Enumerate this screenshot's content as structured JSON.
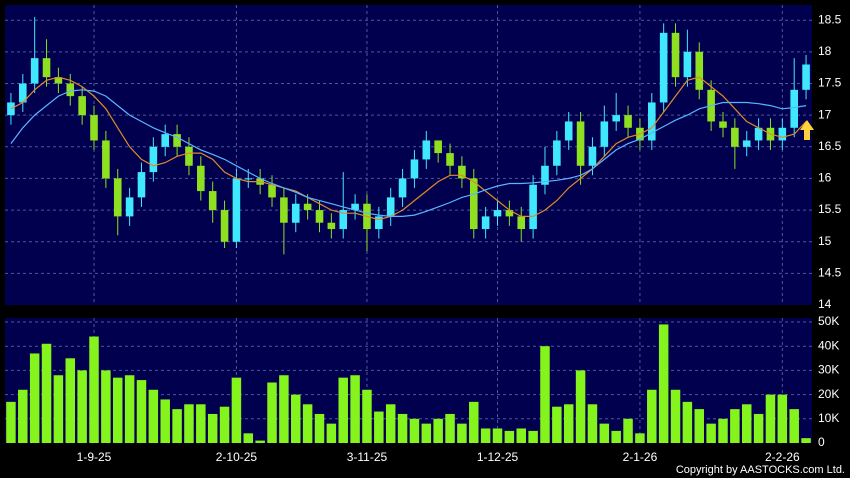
{
  "chart_data": {
    "type": "candlestick",
    "categories": [
      null,
      null,
      null,
      null,
      null,
      null,
      null,
      "1-9-25",
      null,
      null,
      null,
      null,
      null,
      null,
      null,
      null,
      null,
      null,
      null,
      "2-10-25",
      null,
      null,
      null,
      null,
      null,
      null,
      null,
      null,
      null,
      null,
      "3-11-25",
      null,
      null,
      null,
      null,
      null,
      null,
      null,
      null,
      null,
      null,
      "1-12-25",
      null,
      null,
      null,
      null,
      null,
      null,
      null,
      null,
      null,
      null,
      null,
      "2-1-26",
      null,
      null,
      null,
      null,
      null,
      null,
      null,
      null,
      null,
      null,
      null,
      "2-2-26",
      null,
      null
    ],
    "open": [
      17.0,
      17.2,
      17.5,
      17.9,
      17.6,
      17.5,
      17.3,
      17.0,
      16.6,
      16.0,
      15.4,
      15.7,
      16.1,
      16.5,
      16.7,
      16.5,
      16.2,
      15.8,
      15.5,
      15.0,
      16.0,
      16.0,
      15.9,
      15.7,
      15.3,
      15.6,
      15.5,
      15.3,
      15.2,
      15.5,
      15.6,
      15.2,
      15.4,
      15.7,
      16.0,
      16.3,
      16.6,
      16.4,
      16.2,
      16.0,
      15.2,
      15.4,
      15.5,
      15.4,
      15.2,
      15.9,
      16.2,
      16.6,
      16.9,
      16.2,
      16.5,
      16.9,
      17.0,
      16.8,
      16.6,
      17.2,
      18.3,
      17.6,
      18.0,
      17.4,
      16.9,
      16.8,
      16.5,
      16.6,
      16.8,
      16.6,
      16.8,
      17.4
    ],
    "high": [
      17.35,
      17.65,
      18.55,
      18.2,
      17.75,
      17.65,
      17.45,
      17.15,
      16.75,
      16.15,
      15.85,
      16.25,
      16.65,
      16.85,
      16.85,
      16.65,
      16.35,
      15.95,
      15.65,
      16.15,
      16.15,
      16.15,
      16.05,
      15.85,
      15.75,
      15.75,
      15.65,
      15.45,
      16.1,
      15.75,
      15.75,
      15.55,
      15.85,
      16.15,
      16.45,
      16.75,
      16.6,
      16.55,
      16.35,
      16.15,
      15.55,
      15.65,
      15.65,
      15.55,
      16.05,
      16.5,
      16.75,
      17.05,
      17.05,
      16.65,
      17.15,
      17.35,
      17.15,
      16.95,
      17.35,
      18.45,
      18.45,
      18.35,
      18.15,
      17.55,
      17.05,
      16.95,
      16.75,
      16.95,
      16.95,
      16.95,
      17.9,
      17.95
    ],
    "low": [
      16.85,
      17.05,
      17.35,
      17.45,
      17.35,
      17.15,
      16.85,
      16.45,
      15.85,
      15.1,
      15.25,
      15.55,
      15.95,
      16.35,
      16.35,
      16.05,
      15.65,
      15.3,
      14.9,
      14.9,
      15.85,
      15.75,
      15.55,
      14.8,
      15.15,
      15.35,
      15.15,
      15.05,
      15.05,
      15.35,
      14.85,
      15.05,
      15.25,
      15.55,
      15.85,
      16.15,
      16.25,
      16.05,
      15.85,
      15.05,
      15.05,
      15.25,
      15.25,
      15.0,
      15.05,
      15.75,
      16.05,
      16.45,
      15.9,
      16.05,
      16.35,
      16.75,
      16.65,
      16.45,
      16.45,
      17.05,
      17.45,
      17.45,
      17.25,
      16.75,
      16.65,
      16.15,
      16.35,
      16.45,
      16.45,
      16.45,
      16.65,
      17.25
    ],
    "close": [
      17.2,
      17.5,
      17.9,
      17.6,
      17.5,
      17.3,
      17.0,
      16.6,
      16.0,
      15.4,
      15.7,
      16.1,
      16.5,
      16.7,
      16.5,
      16.2,
      15.8,
      15.5,
      15.0,
      16.0,
      16.0,
      15.9,
      15.7,
      15.3,
      15.6,
      15.5,
      15.3,
      15.2,
      15.5,
      15.6,
      15.2,
      15.4,
      15.7,
      16.0,
      16.3,
      16.6,
      16.4,
      16.2,
      16.0,
      15.2,
      15.4,
      15.5,
      15.4,
      15.2,
      15.9,
      16.2,
      16.6,
      16.9,
      16.2,
      16.5,
      16.9,
      17.0,
      16.8,
      16.6,
      17.2,
      18.3,
      17.6,
      18.0,
      17.4,
      16.9,
      16.8,
      16.5,
      16.6,
      16.8,
      16.6,
      16.8,
      17.4,
      17.8
    ],
    "up_color": "#40e8ff",
    "down_color": "#8ee020",
    "series": [
      {
        "color": "#e08a28",
        "values": [
          17.1,
          17.2,
          17.4,
          17.55,
          17.6,
          17.55,
          17.45,
          17.3,
          17.1,
          16.8,
          16.5,
          16.3,
          16.2,
          16.25,
          16.35,
          16.4,
          16.4,
          16.3,
          16.1,
          16.0,
          15.95,
          15.95,
          15.9,
          15.85,
          15.8,
          15.7,
          15.6,
          15.5,
          15.45,
          15.45,
          15.4,
          15.35,
          15.4,
          15.5,
          15.65,
          15.8,
          15.95,
          16.05,
          16.05,
          15.95,
          15.8,
          15.65,
          15.5,
          15.4,
          15.4,
          15.5,
          15.65,
          15.85,
          16.0,
          16.15,
          16.35,
          16.55,
          16.65,
          16.7,
          16.8,
          17.05,
          17.3,
          17.55,
          17.6,
          17.45,
          17.3,
          17.1,
          16.9,
          16.8,
          16.7,
          16.65,
          16.7,
          16.9
        ]
      },
      {
        "color": "#5ab4ff",
        "values": [
          16.55,
          16.8,
          17.0,
          17.15,
          17.3,
          17.38,
          17.4,
          17.38,
          17.3,
          17.15,
          17.0,
          16.9,
          16.8,
          16.72,
          16.65,
          16.55,
          16.45,
          16.38,
          16.3,
          16.2,
          16.1,
          16.0,
          15.92,
          15.85,
          15.78,
          15.7,
          15.65,
          15.6,
          15.55,
          15.5,
          15.45,
          15.42,
          15.4,
          15.4,
          15.42,
          15.48,
          15.55,
          15.62,
          15.7,
          15.75,
          15.82,
          15.88,
          15.92,
          15.92,
          15.93,
          15.95,
          15.97,
          16.0,
          16.05,
          16.15,
          16.3,
          16.45,
          16.55,
          16.62,
          16.72,
          16.82,
          16.92,
          17.0,
          17.1,
          17.15,
          17.2,
          17.2,
          17.2,
          17.18,
          17.15,
          17.1,
          17.12,
          17.15
        ]
      }
    ],
    "ylim": [
      14,
      18.74
    ],
    "yticks": [
      14,
      14.5,
      15,
      15.5,
      16,
      16.5,
      17,
      17.5,
      18,
      18.5
    ],
    "grid": true,
    "volume": {
      "color": "#84f41c",
      "values": [
        17000,
        22000,
        37000,
        41000,
        28000,
        35000,
        30000,
        44000,
        30000,
        27000,
        28000,
        26000,
        22000,
        18000,
        14000,
        16000,
        16000,
        12000,
        15000,
        27000,
        4000,
        1000,
        25000,
        28000,
        20000,
        16000,
        12000,
        8000,
        27000,
        28000,
        22000,
        13000,
        16000,
        12000,
        10000,
        8000,
        10000,
        12000,
        8000,
        17000,
        6000,
        6000,
        5000,
        6000,
        5000,
        40000,
        15000,
        16000,
        30000,
        16000,
        8000,
        5000,
        10000,
        4000,
        22000,
        49000,
        22000,
        17000,
        14000,
        8000,
        10000,
        14000,
        16000,
        12000,
        20000,
        20000,
        14000,
        2000
      ],
      "ylim": [
        0,
        51650
      ],
      "yticks": [
        0,
        {
          "value": 10000,
          "label": "10K"
        },
        {
          "value": 20000,
          "label": "20K"
        },
        {
          "value": 30000,
          "label": "30K"
        },
        {
          "value": 40000,
          "label": "40K"
        },
        {
          "value": 50000,
          "label": "50K"
        }
      ]
    },
    "footer": "Copyright by AASTOCKS.com Ltd."
  }
}
